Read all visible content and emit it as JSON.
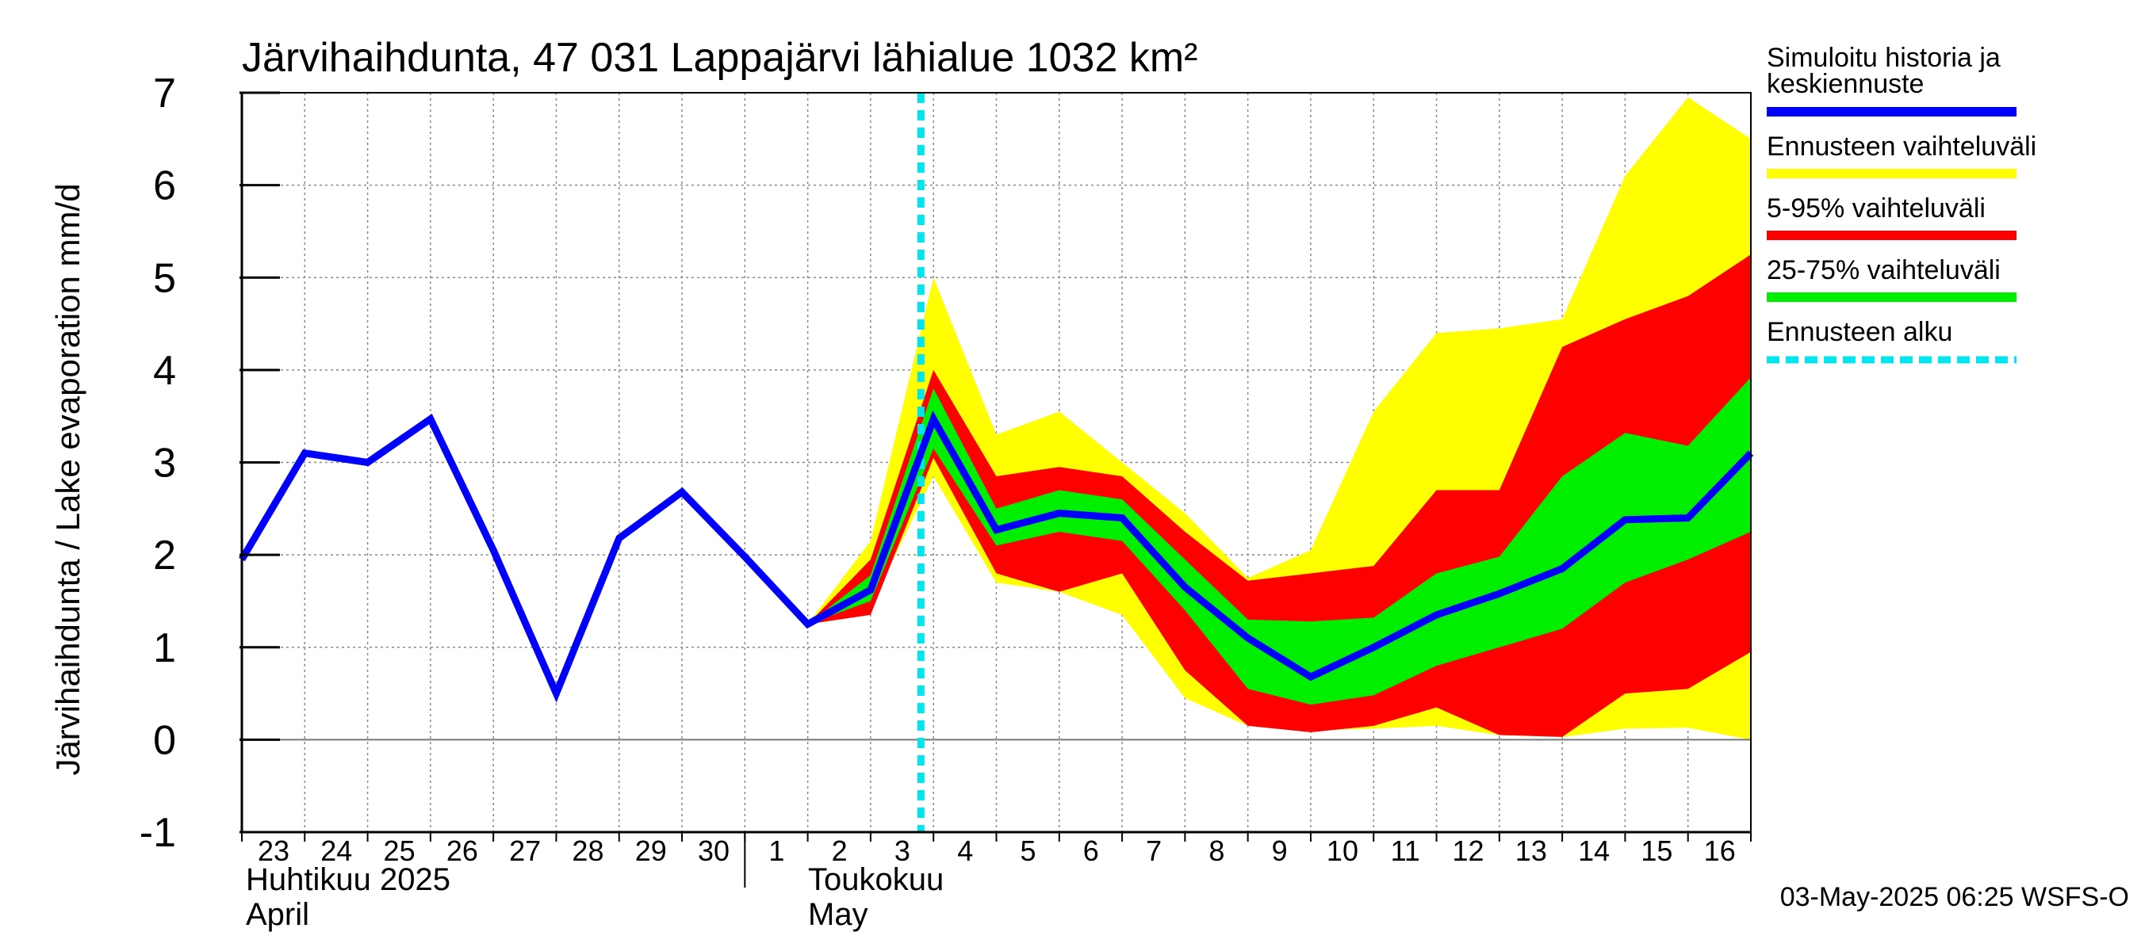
{
  "chart_data": {
    "type": "line",
    "title": "Järvihaihdunta, 47 031 Lappajärvi lähialue 1032 km²",
    "ylabel": "Järvihaihdunta / Lake evaporation   mm/d",
    "ylim": [
      -1,
      7
    ],
    "yticks": [
      -1,
      0,
      1,
      2,
      3,
      4,
      5,
      6,
      7
    ],
    "grid": true,
    "x_tick_labels": [
      "23",
      "24",
      "25",
      "26",
      "27",
      "28",
      "29",
      "30",
      "1",
      "2",
      "3",
      "4",
      "5",
      "6",
      "7",
      "8",
      "9",
      "10",
      "11",
      "12",
      "13",
      "14",
      "15",
      "16"
    ],
    "month_labels": [
      {
        "fi": "Huhtikuu  2025",
        "en": "April"
      },
      {
        "fi": "Toukokuu",
        "en": "May"
      }
    ],
    "forecast_start_x": 10.8,
    "x": [
      0,
      1,
      2,
      3,
      4,
      5,
      6,
      7,
      8,
      9,
      10,
      11,
      12,
      13,
      14,
      15,
      16,
      17,
      18,
      19,
      20,
      21,
      22,
      23,
      24
    ],
    "series": [
      {
        "name": "Ennusteen vaihteluväli",
        "color": "#ffff00",
        "type": "band",
        "x_start": 9,
        "lower": [
          1.25,
          1.45,
          2.85,
          1.7,
          1.6,
          1.35,
          0.45,
          0.15,
          0.1,
          0.12,
          0.15,
          0.05,
          0.03,
          0.12,
          0.13,
          0.0
        ],
        "upper": [
          1.25,
          2.15,
          5.0,
          3.3,
          3.55,
          3.0,
          2.45,
          1.75,
          2.05,
          3.55,
          4.4,
          4.45,
          4.55,
          6.1,
          6.95,
          6.5
        ]
      },
      {
        "name": "5-95% vaihteluväli",
        "color": "#ff0000",
        "type": "band",
        "x_start": 9,
        "lower": [
          1.25,
          1.35,
          3.05,
          1.8,
          1.6,
          1.8,
          0.75,
          0.15,
          0.08,
          0.15,
          0.35,
          0.05,
          0.03,
          0.5,
          0.55,
          0.95
        ],
        "upper": [
          1.25,
          1.95,
          4.0,
          2.85,
          2.95,
          2.85,
          2.25,
          1.72,
          1.8,
          1.88,
          2.7,
          2.7,
          4.25,
          4.55,
          4.8,
          5.25
        ]
      },
      {
        "name": "25-75% vaihteluväli",
        "color": "#00ee00",
        "type": "band",
        "x_start": 9,
        "lower": [
          1.25,
          1.5,
          3.15,
          2.1,
          2.25,
          2.15,
          1.4,
          0.55,
          0.38,
          0.48,
          0.8,
          1.0,
          1.2,
          1.7,
          1.95,
          2.25
        ],
        "upper": [
          1.25,
          1.78,
          3.8,
          2.5,
          2.7,
          2.6,
          1.95,
          1.3,
          1.28,
          1.32,
          1.8,
          1.98,
          2.85,
          3.32,
          3.18,
          3.92
        ]
      },
      {
        "name": "Simuloitu historia ja\nkeskiennuste",
        "color": "#0000ff",
        "type": "line",
        "x_start": 0,
        "values": [
          1.95,
          3.1,
          3.0,
          3.47,
          2.05,
          0.5,
          2.18,
          2.68,
          1.98,
          1.25,
          1.62,
          3.47,
          2.27,
          2.45,
          2.4,
          1.65,
          1.1,
          0.68,
          1.0,
          1.35,
          1.58,
          1.85,
          2.38,
          2.4,
          3.1
        ]
      }
    ],
    "legend": {
      "placement": "right",
      "entries": [
        {
          "label": "Simuloitu historia ja\nkeskiennuste",
          "color": "#0000ff",
          "style": "solid"
        },
        {
          "label": "Ennusteen vaihteluväli",
          "color": "#ffff00",
          "style": "solid"
        },
        {
          "label": "5-95% vaihteluväli",
          "color": "#ff0000",
          "style": "solid"
        },
        {
          "label": "25-75% vaihteluväli",
          "color": "#00ee00",
          "style": "solid"
        },
        {
          "label": "Ennusteen alku",
          "color": "#00e5ee",
          "style": "dashed"
        }
      ]
    },
    "footer": "03-May-2025 06:25 WSFS-O"
  }
}
